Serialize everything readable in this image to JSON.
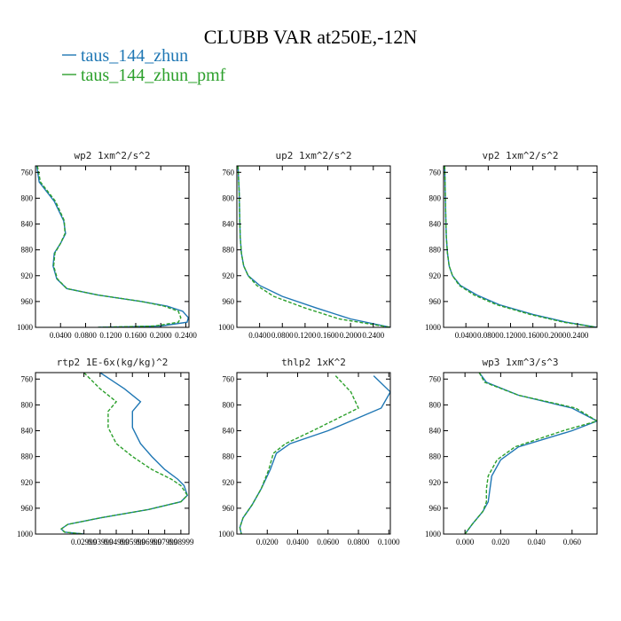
{
  "figure": {
    "title": "CLUBB VAR at250E,-12N",
    "legend": [
      {
        "label": "taus_144_zhun",
        "color": "#1f77b4",
        "dash": "solid"
      },
      {
        "label": "taus_144_zhun_pmf",
        "color": "#2ca02c",
        "dash": "dashed"
      }
    ]
  },
  "chart_data": [
    {
      "type": "line",
      "title": "wp2  1xm^2/s^2",
      "xlim": [
        0.0,
        0.245
      ],
      "ylim": [
        1000,
        750
      ],
      "xticks": [
        0.04,
        0.08,
        0.12,
        0.16,
        0.2,
        0.24
      ],
      "xtick_labels": [
        "0.0400",
        "0.0800",
        "0.1200",
        "0.1600",
        "0.2000",
        "0.2400"
      ],
      "yticks": [
        760,
        800,
        840,
        880,
        920,
        960,
        1000
      ],
      "series": [
        {
          "name": "taus_144_zhun",
          "x": [
            0.002,
            0.006,
            0.03,
            0.045,
            0.048,
            0.04,
            0.03,
            0.028,
            0.034,
            0.05,
            0.1,
            0.17,
            0.21,
            0.235,
            0.244,
            0.242,
            0.2,
            0.1
          ],
          "y": [
            750,
            775,
            805,
            835,
            855,
            870,
            885,
            905,
            925,
            940,
            950,
            960,
            967,
            975,
            985,
            992,
            998,
            1000
          ]
        },
        {
          "name": "taus_144_zhun_pmf",
          "x": [
            0.003,
            0.008,
            0.032,
            0.046,
            0.047,
            0.04,
            0.031,
            0.029,
            0.035,
            0.05,
            0.1,
            0.17,
            0.205,
            0.228,
            0.232,
            0.228,
            0.19,
            0.1
          ],
          "y": [
            750,
            775,
            805,
            835,
            855,
            870,
            885,
            905,
            925,
            940,
            950,
            960,
            967,
            975,
            985,
            992,
            998,
            1000
          ]
        }
      ]
    },
    {
      "type": "line",
      "title": "up2  1xm^2/s^2",
      "xlim": [
        0.0,
        0.27
      ],
      "ylim": [
        1000,
        750
      ],
      "xticks": [
        0.04,
        0.08,
        0.12,
        0.16,
        0.2,
        0.24
      ],
      "xtick_labels": [
        "0.0400",
        "0.0800",
        "0.1200",
        "0.1600",
        "0.2000",
        "0.2400"
      ],
      "yticks": [
        760,
        800,
        840,
        880,
        920,
        960,
        1000
      ],
      "series": [
        {
          "name": "taus_144_zhun",
          "x": [
            0.002,
            0.004,
            0.005,
            0.006,
            0.008,
            0.012,
            0.02,
            0.04,
            0.08,
            0.14,
            0.2,
            0.27
          ],
          "y": [
            750,
            790,
            830,
            860,
            885,
            905,
            920,
            935,
            952,
            970,
            987,
            1000
          ]
        },
        {
          "name": "taus_144_zhun_pmf",
          "x": [
            0.002,
            0.004,
            0.005,
            0.006,
            0.008,
            0.012,
            0.02,
            0.035,
            0.065,
            0.12,
            0.18,
            0.27
          ],
          "y": [
            750,
            790,
            830,
            860,
            885,
            905,
            920,
            935,
            952,
            970,
            987,
            1000
          ]
        }
      ]
    },
    {
      "type": "line",
      "title": "vp2  1xm^2/s^2",
      "xlim": [
        0.0,
        0.275
      ],
      "ylim": [
        1000,
        750
      ],
      "xticks": [
        0.04,
        0.08,
        0.12,
        0.16,
        0.2,
        0.24
      ],
      "xtick_labels": [
        "0.0400",
        "0.0800",
        "0.1200",
        "0.1600",
        "0.2000",
        "0.2400"
      ],
      "yticks": [
        760,
        800,
        840,
        880,
        920,
        960,
        1000
      ],
      "series": [
        {
          "name": "taus_144_zhun",
          "x": [
            0.002,
            0.003,
            0.004,
            0.005,
            0.007,
            0.01,
            0.016,
            0.03,
            0.06,
            0.1,
            0.16,
            0.22,
            0.275
          ],
          "y": [
            750,
            790,
            830,
            860,
            885,
            905,
            920,
            935,
            950,
            965,
            980,
            992,
            1000
          ]
        },
        {
          "name": "taus_144_zhun_pmf",
          "x": [
            0.002,
            0.003,
            0.004,
            0.005,
            0.007,
            0.01,
            0.016,
            0.028,
            0.055,
            0.095,
            0.155,
            0.215,
            0.275
          ],
          "y": [
            750,
            790,
            830,
            860,
            885,
            905,
            920,
            935,
            950,
            965,
            980,
            992,
            1000
          ]
        }
      ]
    },
    {
      "type": "line",
      "title": "rtp2  1E-6x(kg/kg)^2",
      "xlim": [
        0.0,
        0.095
      ],
      "ylim": [
        1000,
        750
      ],
      "xticks": [
        0.02999,
        0.03999,
        0.04999,
        0.05999,
        0.06999,
        0.07999,
        0.08999
      ],
      "xtick_labels": [
        "0.02999",
        "0.03999",
        "0.04999",
        "0.05999",
        "0.06999",
        "0.07999",
        "0.08999"
      ],
      "yticks": [
        760,
        800,
        840,
        880,
        920,
        960,
        1000
      ],
      "series": [
        {
          "name": "taus_144_zhun",
          "x": [
            0.04,
            0.055,
            0.065,
            0.06,
            0.06,
            0.065,
            0.072,
            0.08,
            0.088,
            0.092,
            0.094,
            0.09,
            0.07,
            0.04,
            0.02,
            0.016,
            0.018,
            0.03
          ],
          "y": [
            750,
            775,
            795,
            810,
            835,
            860,
            880,
            900,
            915,
            925,
            940,
            950,
            962,
            975,
            985,
            992,
            997,
            1000
          ]
        },
        {
          "name": "taus_144_zhun_pmf",
          "x": [
            0.03,
            0.04,
            0.05,
            0.045,
            0.045,
            0.05,
            0.06,
            0.072,
            0.084,
            0.09,
            0.094,
            0.09,
            0.07,
            0.04,
            0.02,
            0.016,
            0.018,
            0.03
          ],
          "y": [
            750,
            775,
            795,
            810,
            835,
            860,
            880,
            900,
            915,
            925,
            940,
            950,
            962,
            975,
            985,
            992,
            997,
            1000
          ]
        }
      ]
    },
    {
      "type": "line",
      "title": "thlp2  1xK^2",
      "xlim": [
        0.0,
        0.101
      ],
      "ylim": [
        1000,
        750
      ],
      "xticks": [
        0.02,
        0.04,
        0.06,
        0.08,
        0.1
      ],
      "xtick_labels": [
        "0.0200",
        "0.0400",
        "0.0600",
        "0.0800",
        "0.1000"
      ],
      "yticks": [
        760,
        800,
        840,
        880,
        920,
        960,
        1000
      ],
      "series": [
        {
          "name": "taus_144_zhun",
          "x": [
            0.09,
            0.101,
            0.095,
            0.06,
            0.035,
            0.026,
            0.022,
            0.016,
            0.01,
            0.004,
            0.002,
            0.003
          ],
          "y": [
            755,
            780,
            805,
            840,
            860,
            875,
            900,
            930,
            955,
            975,
            990,
            1000
          ]
        },
        {
          "name": "taus_144_zhun_pmf",
          "x": [
            0.065,
            0.075,
            0.08,
            0.05,
            0.032,
            0.024,
            0.021,
            0.016,
            0.01,
            0.004,
            0.002,
            0.003
          ],
          "y": [
            755,
            780,
            805,
            840,
            860,
            875,
            900,
            930,
            955,
            975,
            990,
            1000
          ]
        }
      ]
    },
    {
      "type": "line",
      "title": "wp3  1xm^3/s^3",
      "xlim": [
        -0.012,
        0.074
      ],
      "ylim": [
        1000,
        750
      ],
      "xticks": [
        0.0,
        0.02,
        0.04,
        0.06
      ],
      "xtick_labels": [
        "0.000",
        "0.020",
        "0.040",
        "0.060"
      ],
      "yticks": [
        760,
        800,
        840,
        880,
        920,
        960,
        1000
      ],
      "series": [
        {
          "name": "taus_144_zhun",
          "x": [
            0.008,
            0.012,
            0.03,
            0.06,
            0.074,
            0.06,
            0.03,
            0.02,
            0.015,
            0.014,
            0.013,
            0.01,
            0.004,
            0.0
          ],
          "y": [
            750,
            765,
            785,
            805,
            825,
            840,
            865,
            885,
            910,
            930,
            950,
            965,
            985,
            1000
          ]
        },
        {
          "name": "taus_144_zhun_pmf",
          "x": [
            0.008,
            0.011,
            0.03,
            0.062,
            0.074,
            0.055,
            0.028,
            0.018,
            0.013,
            0.012,
            0.012,
            0.01,
            0.004,
            0.0
          ],
          "y": [
            750,
            765,
            785,
            805,
            825,
            840,
            865,
            885,
            910,
            930,
            950,
            965,
            985,
            1000
          ]
        }
      ]
    }
  ]
}
